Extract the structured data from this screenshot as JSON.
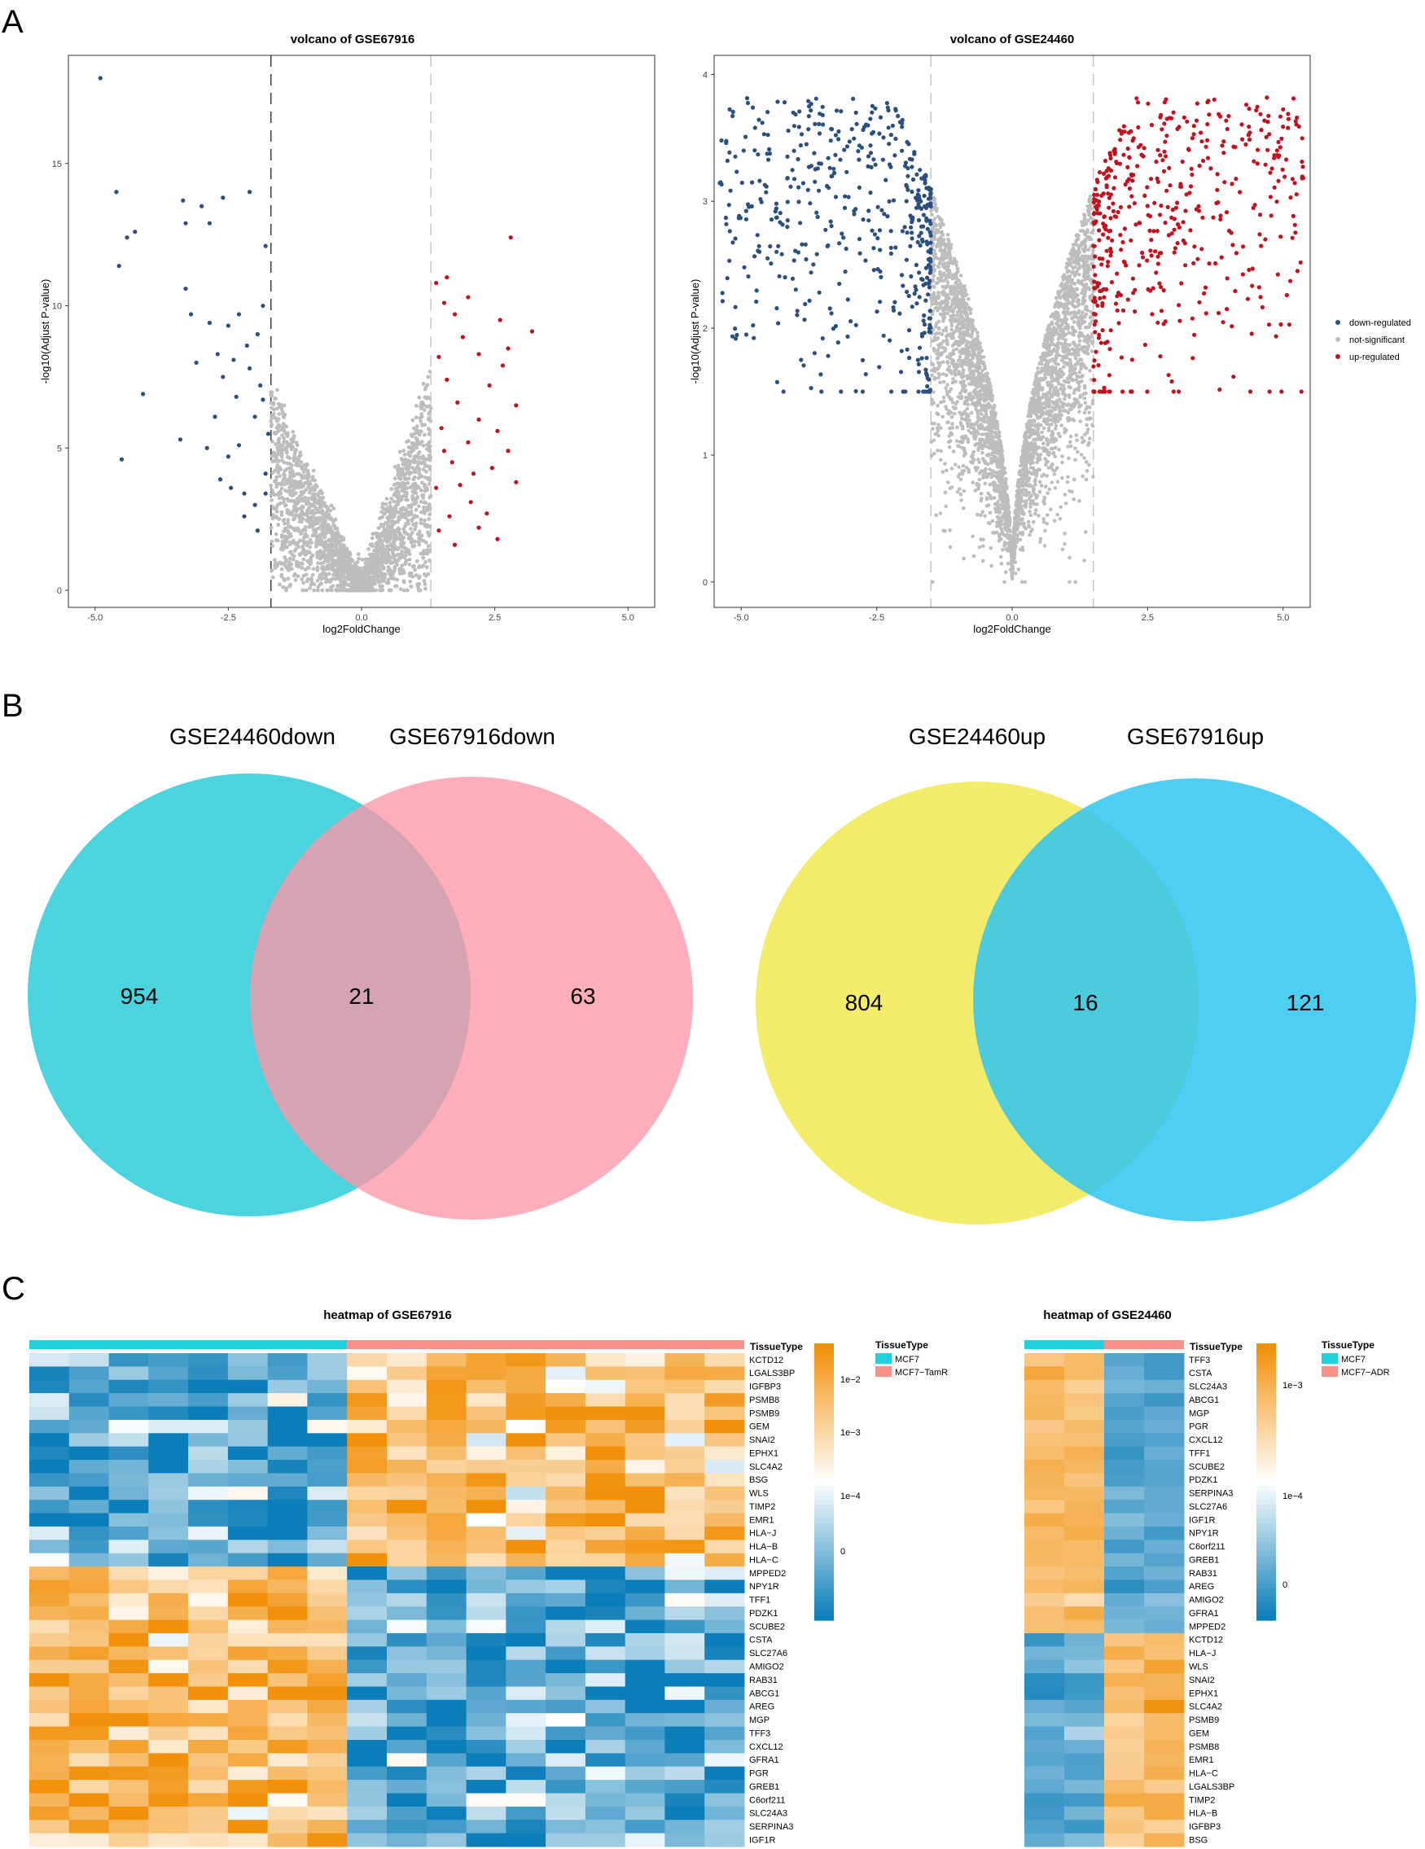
{
  "panels": {
    "A": "A",
    "B": "B",
    "C": "C"
  },
  "colors": {
    "down": "#2b4f7e",
    "ns": "#bdbdbd",
    "up": "#c1121f",
    "mcf7": "#1fd1dc",
    "treated": "#f7928a",
    "heat_low": "#0b7db8",
    "heat_mid": "#ffffff",
    "heat_high": "#f29009",
    "venn_teal": "#3ccfdb",
    "venn_pink": "#fea4b0",
    "venn_yellow": "#f3ec6b",
    "venn_blue": "#3cc9f0"
  },
  "chart_data": [
    {
      "id": "volcano1",
      "type": "scatter",
      "title": "volcano of GSE67916",
      "xlabel": "log2FoldChange",
      "ylabel": "-log10(Adjust P-value)",
      "xlim": [
        -5.5,
        5.5
      ],
      "ylim": [
        -0.6,
        18.8
      ],
      "xticks": [
        -5.0,
        -2.5,
        0.0,
        2.5,
        5.0
      ],
      "xtick_labels": [
        "-5.0",
        "-2.5",
        "0.0",
        "2.5",
        "5.0"
      ],
      "yticks": [
        0,
        5,
        10,
        15
      ],
      "ytick_labels": [
        "0",
        "5",
        "10",
        "15"
      ],
      "thresholds": [
        -1.7,
        1.3
      ],
      "highlighted_points": {
        "down": [
          [
            -4.9,
            18
          ],
          [
            -4.6,
            14
          ],
          [
            -4.55,
            11.4
          ],
          [
            -4.4,
            12.4
          ],
          [
            -4.25,
            12.6
          ],
          [
            -4.1,
            6.9
          ],
          [
            -4.5,
            4.6
          ],
          [
            -3.35,
            13.7
          ],
          [
            -3.3,
            12.9
          ],
          [
            -3.0,
            13.5
          ],
          [
            -2.85,
            12.9
          ],
          [
            -2.6,
            13.8
          ],
          [
            -2.1,
            14.0
          ],
          [
            -1.8,
            12.1
          ],
          [
            -3.3,
            10.6
          ],
          [
            -3.2,
            9.7
          ],
          [
            -3.1,
            8.0
          ],
          [
            -2.85,
            9.4
          ],
          [
            -2.7,
            8.3
          ],
          [
            -2.6,
            7.5
          ],
          [
            -2.5,
            9.3
          ],
          [
            -2.4,
            8.1
          ],
          [
            -2.3,
            9.7
          ],
          [
            -2.15,
            8.6
          ],
          [
            -1.95,
            9.0
          ],
          [
            -1.85,
            10.0
          ],
          [
            -1.9,
            7.2
          ],
          [
            -2.0,
            6.1
          ],
          [
            -2.3,
            5.1
          ],
          [
            -2.5,
            4.7
          ],
          [
            -2.65,
            3.9
          ],
          [
            -2.45,
            3.6
          ],
          [
            -2.2,
            3.4
          ],
          [
            -2.0,
            3.0
          ],
          [
            -1.95,
            2.1
          ],
          [
            -1.8,
            4.1
          ],
          [
            -1.75,
            5.5
          ],
          [
            -1.85,
            6.7
          ],
          [
            -2.75,
            6.1
          ],
          [
            -2.9,
            5.0
          ],
          [
            -3.4,
            5.3
          ],
          [
            -2.2,
            2.6
          ],
          [
            -1.8,
            3.4
          ],
          [
            -2.1,
            7.8
          ],
          [
            -2.35,
            6.8
          ]
        ],
        "up": [
          [
            2.8,
            12.4
          ],
          [
            3.2,
            9.1
          ],
          [
            2.6,
            9.5
          ],
          [
            2.75,
            8.5
          ],
          [
            2.65,
            7.9
          ],
          [
            1.4,
            10.8
          ],
          [
            1.6,
            11.0
          ],
          [
            1.55,
            10.1
          ],
          [
            1.75,
            9.7
          ],
          [
            2.0,
            10.3
          ],
          [
            1.9,
            8.9
          ],
          [
            2.2,
            8.3
          ],
          [
            2.4,
            7.2
          ],
          [
            2.55,
            5.6
          ],
          [
            2.75,
            4.9
          ],
          [
            2.9,
            3.8
          ],
          [
            2.2,
            6.0
          ],
          [
            2.0,
            5.2
          ],
          [
            1.8,
            6.6
          ],
          [
            1.6,
            7.4
          ],
          [
            1.45,
            8.2
          ],
          [
            1.5,
            5.7
          ],
          [
            1.7,
            4.5
          ],
          [
            1.85,
            3.7
          ],
          [
            2.05,
            3.1
          ],
          [
            2.35,
            2.7
          ],
          [
            2.55,
            1.8
          ],
          [
            1.65,
            2.6
          ],
          [
            1.4,
            3.6
          ],
          [
            1.55,
            4.9
          ],
          [
            2.45,
            4.3
          ],
          [
            2.2,
            2.2
          ],
          [
            1.75,
            1.6
          ],
          [
            1.45,
            2.1
          ],
          [
            2.9,
            6.5
          ],
          [
            2.1,
            4.1
          ]
        ]
      }
    },
    {
      "id": "volcano2",
      "type": "scatter",
      "title": "volcano of GSE24460",
      "xlabel": "log2FoldChange",
      "ylabel": "-log10(Adjust P-value)",
      "xlim": [
        -5.5,
        5.5
      ],
      "ylim": [
        -0.2,
        4.15
      ],
      "xticks": [
        -5.0,
        -2.5,
        0.0,
        2.5,
        5.0
      ],
      "xtick_labels": [
        "-5.0",
        "-2.5",
        "0.0",
        "2.5",
        "5.0"
      ],
      "yticks": [
        0,
        1,
        2,
        3,
        4
      ],
      "ytick_labels": [
        "0",
        "1",
        "2",
        "3",
        "4"
      ],
      "thresholds": [
        -1.5,
        1.5
      ],
      "saturation_level": 3.82,
      "legend": [
        "down-regulated",
        "not-significant",
        "up-regulated"
      ]
    },
    {
      "id": "venn1",
      "type": "venn",
      "sets": [
        "GSE24460down",
        "GSE67916down"
      ],
      "counts": {
        "left_only": "954",
        "both": "21",
        "right_only": "63"
      }
    },
    {
      "id": "venn2",
      "type": "venn",
      "sets": [
        "GSE24460up",
        "GSE67916up"
      ],
      "counts": {
        "left_only": "804",
        "both": "16",
        "right_only": "121"
      }
    },
    {
      "id": "heatmap1",
      "type": "heatmap",
      "title": "heatmap of GSE67916",
      "annotation_label": "TissueType",
      "groups": [
        "MCF7",
        "MCF7−TamR"
      ],
      "n_samples": [
        8,
        10
      ],
      "rows": [
        "KCTD12",
        "LGALS3BP",
        "IGFBP3",
        "PSMB8",
        "PSMB9",
        "GEM",
        "SNAI2",
        "EPHX1",
        "SLC4A2",
        "BSG",
        "WLS",
        "TIMP2",
        "EMR1",
        "HLA−J",
        "HLA−B",
        "HLA−C",
        "MPPED2",
        "NPY1R",
        "TFF1",
        "PDZK1",
        "SCUBE2",
        "CSTA",
        "SLC27A6",
        "AMIGO2",
        "RAB31",
        "ABCG1",
        "AREG",
        "MGP",
        "TFF3",
        "CXCL12",
        "GFRA1",
        "PGR",
        "GREB1",
        "C6orf211",
        "SLC24A3",
        "SERPINA3",
        "IGF1R"
      ],
      "n_up_in_treated": 16,
      "legend_ticks": [
        "1e−2",
        "1e−3",
        "1e−4",
        "0"
      ]
    },
    {
      "id": "heatmap2",
      "type": "heatmap",
      "title": "heatmap of GSE24460",
      "annotation_label": "TissueType",
      "groups": [
        "MCF7",
        "MCF7−ADR"
      ],
      "n_samples": [
        2,
        2
      ],
      "rows": [
        "TFF3",
        "CSTA",
        "SLC24A3",
        "ABCG1",
        "MGP",
        "PGR",
        "CXCL12",
        "TFF1",
        "SCUBE2",
        "PDZK1",
        "SERPINA3",
        "SLC27A6",
        "IGF1R",
        "NPY1R",
        "C6orf211",
        "GREB1",
        "RAB31",
        "AREG",
        "AMIGO2",
        "GFRA1",
        "MPPED2",
        "KCTD12",
        "HLA−J",
        "WLS",
        "SNAI2",
        "EPHX1",
        "SLC4A2",
        "PSMB9",
        "GEM",
        "PSMB8",
        "EMR1",
        "HLA−C",
        "LGALS3BP",
        "TIMP2",
        "HLA−B",
        "IGFBP3",
        "BSG"
      ],
      "n_down_in_treated": 21,
      "legend_ticks": [
        "1e−3",
        "1e−4",
        "0"
      ]
    }
  ]
}
